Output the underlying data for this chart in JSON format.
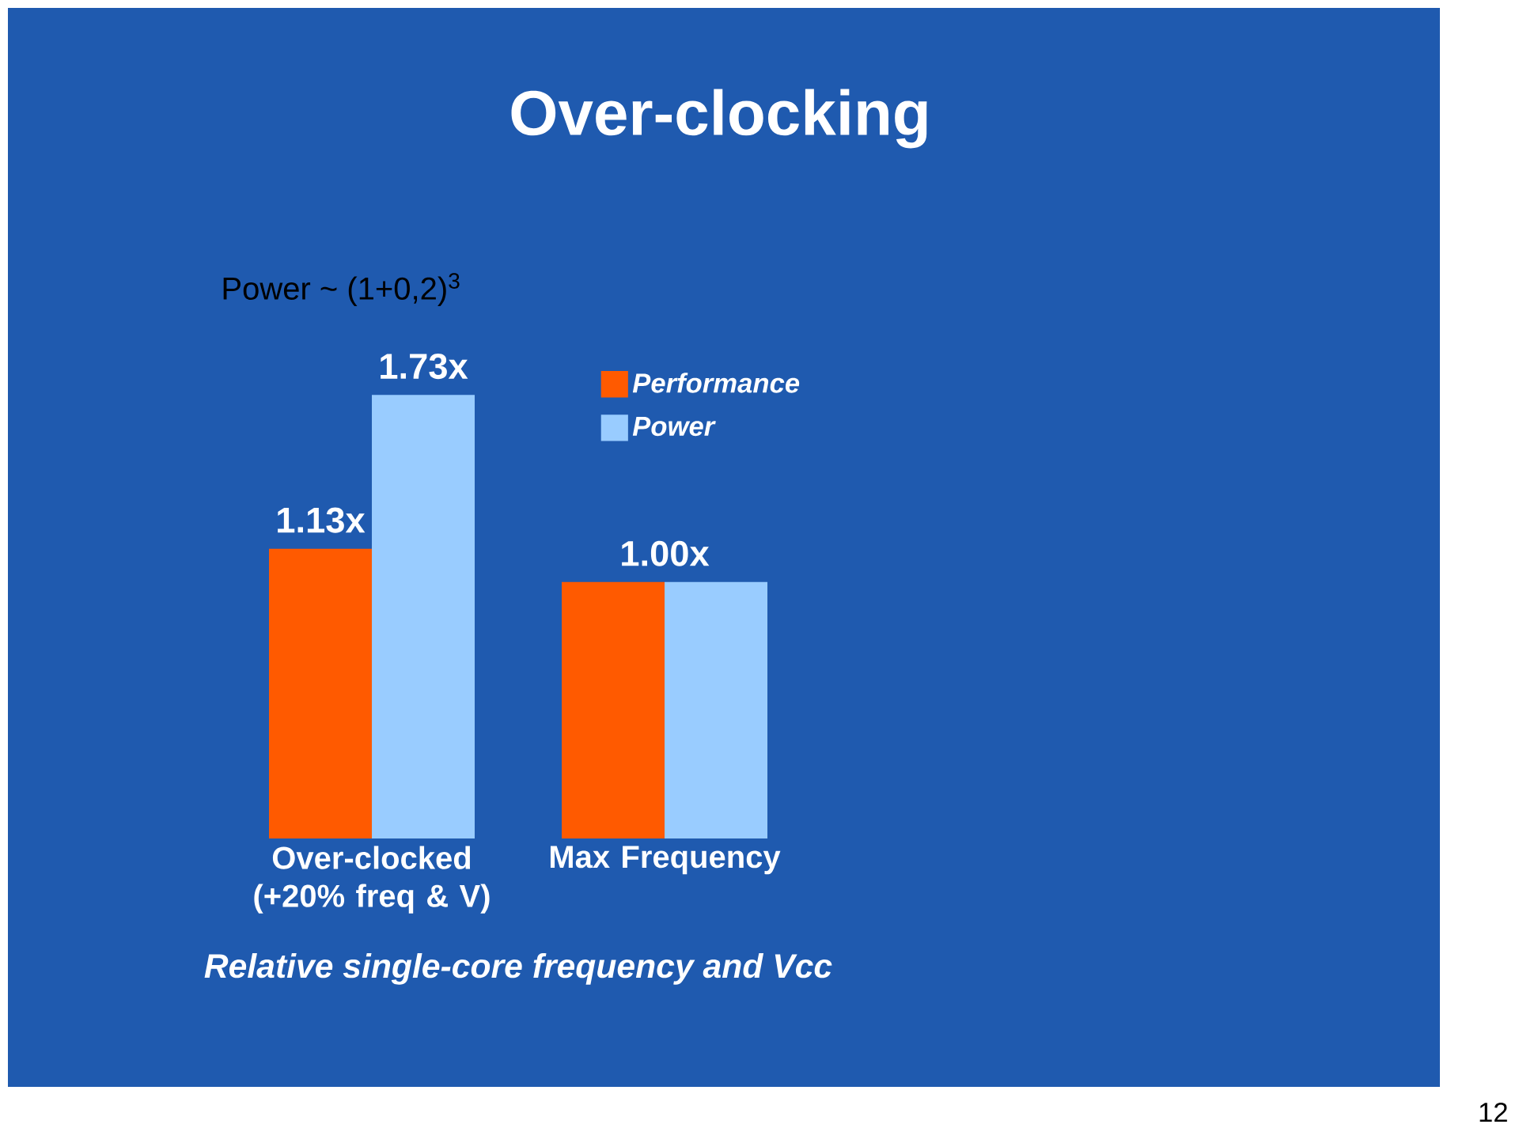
{
  "chart_data": {
    "type": "bar",
    "title": "Over-clocking",
    "xlabel": "Relative single-core frequency and Vcc",
    "categories": [
      "Over-clocked (+20% freq & V)",
      "Max Frequency"
    ],
    "series": [
      {
        "name": "Performance",
        "color": "#ff5a00",
        "values": [
          1.13,
          1.0
        ],
        "value_labels": [
          "1.13x",
          "1.00x"
        ]
      },
      {
        "name": "Power",
        "color": "#99ccff",
        "values": [
          1.73,
          1.0
        ],
        "value_labels": [
          "1.73x",
          null
        ]
      }
    ],
    "legend": "top right",
    "annotations": [
      "Power ~ (1+0,2)$^{3}$",
      "12"
    ]
  }
}
